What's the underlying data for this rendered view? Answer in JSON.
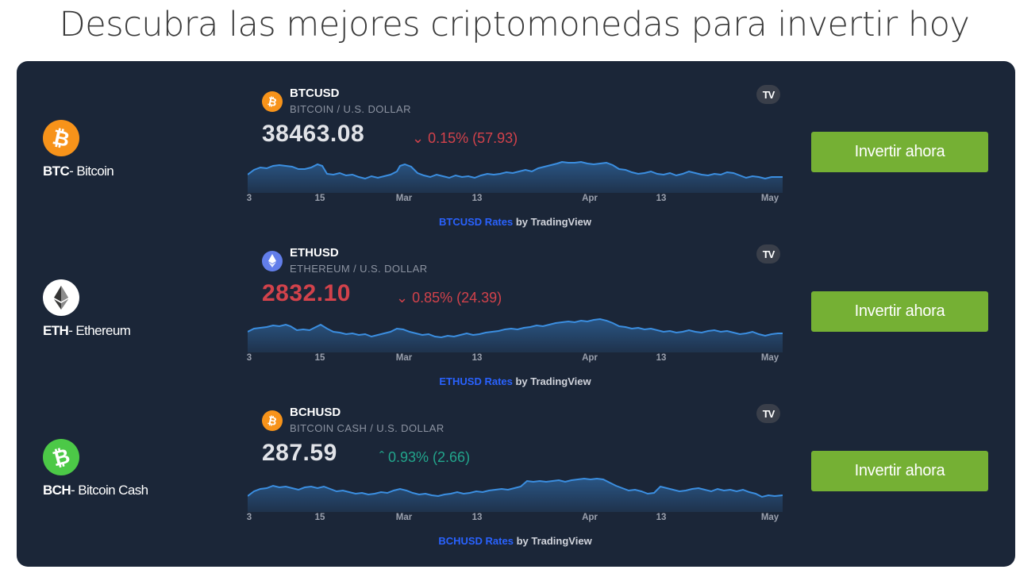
{
  "page": {
    "title": "Descubra las mejores criptomonedas para invertir hoy"
  },
  "axis_labels": [
    "3",
    "15",
    "Mar",
    "13",
    "Apr",
    "13",
    "May"
  ],
  "rows": [
    {
      "coin": {
        "ticker": "BTC",
        "name": "- Bitcoin",
        "color": "#f7931a",
        "icon": "bitcoin-icon"
      },
      "widget": {
        "symbol": "BTCUSD",
        "description": "BITCOIN / U.S. DOLLAR",
        "price": "38463.08",
        "change": "0.15% (57.93)",
        "direction": "down",
        "credit_link": "BTCUSD Rates",
        "credit_suffix": " by TradingView",
        "tv_logo": "TV"
      },
      "button": "Invertir ahora"
    },
    {
      "coin": {
        "ticker": "ETH",
        "name": "- Ethereum",
        "color": "#627eea",
        "icon": "ethereum-icon"
      },
      "widget": {
        "symbol": "ETHUSD",
        "description": "ETHEREUM / U.S. DOLLAR",
        "price": "2832.10",
        "change": "0.85% (24.39)",
        "direction": "down",
        "credit_link": "ETHUSD Rates",
        "credit_suffix": " by TradingView",
        "tv_logo": "TV"
      },
      "button": "Invertir ahora"
    },
    {
      "coin": {
        "ticker": "BCH",
        "name": "- Bitcoin Cash",
        "color": "#4cc947",
        "icon": "bitcoin-cash-icon"
      },
      "widget": {
        "symbol": "BCHUSD",
        "description": "BITCOIN CASH / U.S. DOLLAR",
        "price": "287.59",
        "change": "0.93% (2.66)",
        "direction": "up",
        "credit_link": "BCHUSD Rates",
        "credit_suffix": " by TradingView",
        "tv_logo": "TV"
      },
      "button": "Invertir ahora"
    }
  ],
  "colors": {
    "panel": "#1b2638",
    "button": "#75b034",
    "down": "#d2424b",
    "up": "#22a58c",
    "chart_line": "#3b8ee0",
    "link": "#2962ff"
  }
}
